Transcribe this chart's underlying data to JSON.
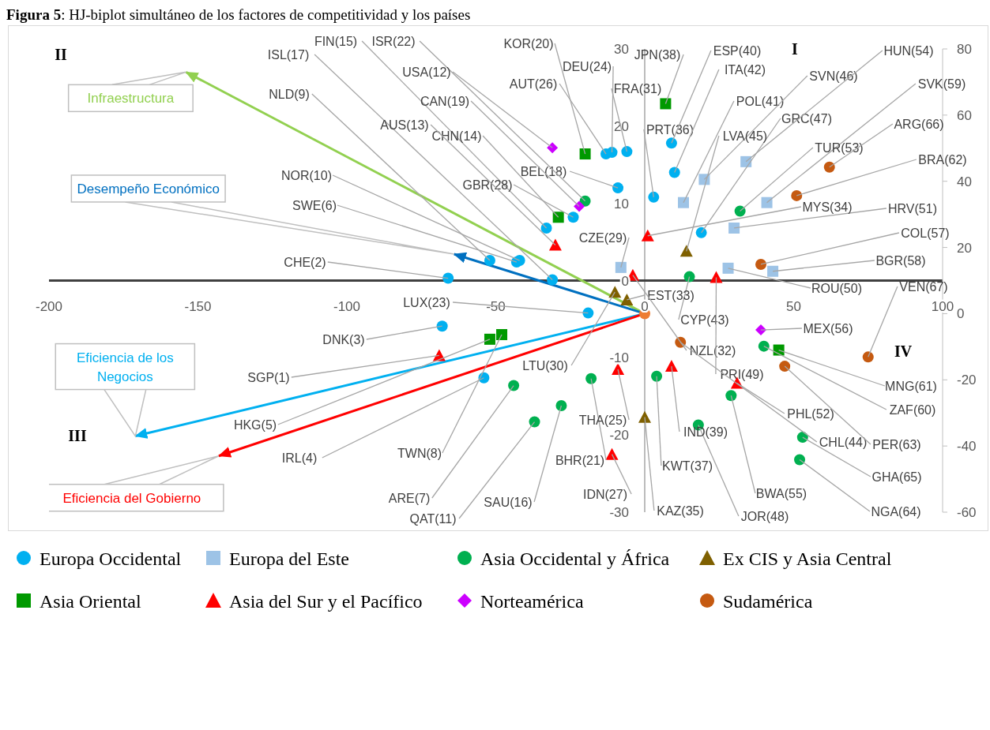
{
  "chart_data": {
    "type": "scatter",
    "title": "Figura 5: HJ-biplot simultáneo de los factores de competitividad y los países",
    "xlim": [
      -200,
      100
    ],
    "xticks": [
      -200,
      -150,
      -100,
      -50,
      0,
      50,
      100
    ],
    "ylim": [
      -30,
      30
    ],
    "yticks": [
      -30,
      -20,
      -10,
      0,
      10,
      20,
      30
    ],
    "y2lim": [
      -60,
      80
    ],
    "y2ticks": [
      -60,
      -40,
      -20,
      0,
      20,
      40,
      60,
      80
    ],
    "legend": "bottom",
    "series": [
      {
        "name": "Infraestructura",
        "type": "line",
        "color": "#92d050",
        "axis": "y2",
        "x": [
          0,
          -154
        ],
        "values": [
          0,
          73
        ]
      },
      {
        "name": "Desempeño Económico",
        "type": "line",
        "color": "#0070c0",
        "axis": "y2",
        "x": [
          0,
          -64
        ],
        "values": [
          0,
          18
        ]
      },
      {
        "name": "Eficiencia de los Negocios",
        "type": "line",
        "color": "#00b0f0",
        "axis": "y2",
        "x": [
          0,
          -171
        ],
        "values": [
          0,
          -37
        ]
      },
      {
        "name": "Eficiencia del Gobierno",
        "type": "line",
        "color": "#ff0000",
        "axis": "y2",
        "x": [
          0,
          -143
        ],
        "values": [
          0,
          -43
        ]
      },
      {
        "name": "Europa Occidental",
        "type": "scatter",
        "marker": "circle",
        "color": "#00b0f0",
        "x": [
          -66,
          -43,
          -42,
          -52,
          -31,
          -33,
          -24,
          -9,
          -13,
          -11,
          -6,
          3,
          9,
          10,
          19,
          -19,
          -68,
          -54
        ],
        "values": [
          0.3,
          2.4,
          2.6,
          2.6,
          0.1,
          6.8,
          8.2,
          12.0,
          16.4,
          16.6,
          16.7,
          10.8,
          17.8,
          14.0,
          6.2,
          -4.2,
          -5.9,
          -12.6
        ]
      },
      {
        "name": "Europa del Este",
        "type": "scatter",
        "marker": "square",
        "color": "#9dc3e6",
        "x": [
          -8,
          13,
          20,
          34,
          41,
          30,
          28,
          43
        ],
        "values": [
          1.7,
          10.1,
          13.1,
          15.4,
          10.1,
          6.8,
          1.6,
          1.2
        ]
      },
      {
        "name": "Asia Occidental y África",
        "type": "scatter",
        "marker": "circle",
        "color": "#00b050",
        "x": [
          -20,
          32,
          15,
          -44,
          -37,
          -28,
          -18,
          4,
          18,
          29,
          40,
          53,
          52
        ],
        "values": [
          10.3,
          9.0,
          0.5,
          -13.6,
          -18.3,
          -16.2,
          -12.7,
          -12.4,
          -18.7,
          -14.9,
          -8.5,
          -20.3,
          -23.2
        ]
      },
      {
        "name": "Ex CIS y Asia Central",
        "type": "scatter",
        "marker": "triangle",
        "color": "#7f6000",
        "x": [
          14,
          -10,
          -6,
          0
        ],
        "values": [
          3.8,
          -1.5,
          -2.5,
          -17.7
        ]
      },
      {
        "name": "Asia Oriental",
        "type": "scatter",
        "marker": "square",
        "color": "#009900",
        "x": [
          7,
          -20,
          -29,
          -52,
          -48,
          45
        ],
        "values": [
          22.9,
          16.4,
          8.2,
          -7.6,
          -7.0,
          -9.0
        ]
      },
      {
        "name": "Asia del Sur y el Pacífico",
        "type": "scatter",
        "marker": "triangle",
        "color": "#ff0000",
        "x": [
          -69,
          -30,
          -4,
          1,
          24,
          -9,
          -11,
          9,
          31
        ],
        "values": [
          -9.7,
          4.6,
          0.7,
          5.8,
          0.4,
          -11.5,
          -22.5,
          -11.1,
          -13.3
        ]
      },
      {
        "name": "Norteamérica",
        "type": "scatter",
        "marker": "diamond",
        "color": "#cc00ff",
        "x": [
          -31,
          -22,
          39
        ],
        "values": [
          17.2,
          9.6,
          -6.4
        ]
      },
      {
        "name": "Sudamérica",
        "type": "scatter",
        "marker": "circle",
        "color": "#c55a11",
        "x": [
          62,
          51,
          39,
          12,
          47,
          75
        ],
        "values": [
          14.7,
          11.0,
          2.1,
          -8.0,
          -11.1,
          -9.9
        ]
      },
      {
        "type": "scatter",
        "marker": "circle",
        "color": "#ed7d31",
        "axis": "y2",
        "x": [
          0
        ],
        "values": [
          0
        ]
      }
    ],
    "annotations": [
      "II",
      "I",
      "III",
      "IV",
      {
        "text": "CHE(2)",
        "x": -66,
        "y": 0.3
      },
      {
        "text": "SWE(6)",
        "x": -43,
        "y": 2.4
      },
      {
        "text": "NOR(10)",
        "x": -42,
        "y": 2.6
      },
      {
        "text": "NLD(9)",
        "x": -52,
        "y": 2.6
      },
      {
        "text": "ISL(17)",
        "x": -31,
        "y": 0.1
      },
      {
        "text": "FIN(15)",
        "x": -33,
        "y": 6.8
      },
      {
        "text": "GBR(28)",
        "x": -24,
        "y": 8.2
      },
      {
        "text": "BEL(18)",
        "x": -9,
        "y": 12.0
      },
      {
        "text": "AUT(26)",
        "x": -13,
        "y": 16.4
      },
      {
        "text": "DEU(24)",
        "x": -11,
        "y": 16.6
      },
      {
        "text": "FRA(31)",
        "x": -6,
        "y": 16.7
      },
      {
        "text": "PRT(36)",
        "x": 3,
        "y": 10.8
      },
      {
        "text": "ESP(40)",
        "x": 9,
        "y": 17.8
      },
      {
        "text": "ITA(42)",
        "x": 10,
        "y": 14.0
      },
      {
        "text": "GRC(47)",
        "x": 19,
        "y": 6.2
      },
      {
        "text": "LUX(23)",
        "x": -19,
        "y": -4.2
      },
      {
        "text": "DNK(3)",
        "x": -68,
        "y": -5.9
      },
      {
        "text": "IRL(4)",
        "x": -54,
        "y": -12.6
      },
      {
        "text": "CZE(29)",
        "x": -8,
        "y": 1.7
      },
      {
        "text": "POL(41)",
        "x": 13,
        "y": 10.1
      },
      {
        "text": "SVN(46)",
        "x": 20,
        "y": 13.1
      },
      {
        "text": "HUN(54)",
        "x": 34,
        "y": 15.4
      },
      {
        "text": "SVK(59)",
        "x": 41,
        "y": 10.1
      },
      {
        "text": "HRV(51)",
        "x": 30,
        "y": 6.8
      },
      {
        "text": "ROU(50)",
        "x": 28,
        "y": 1.6
      },
      {
        "text": "BGR(58)",
        "x": 43,
        "y": 1.2
      },
      {
        "text": "ISR(22)",
        "x": -20,
        "y": 10.3
      },
      {
        "text": "TUR(53)",
        "x": 32,
        "y": 9.0
      },
      {
        "text": "CYP(43)",
        "x": 15,
        "y": 0.5
      },
      {
        "text": "ARE(7)",
        "x": -44,
        "y": -13.6
      },
      {
        "text": "QAT(11)",
        "x": -37,
        "y": -18.3
      },
      {
        "text": "SAU(16)",
        "x": -28,
        "y": -16.2
      },
      {
        "text": "BHR(21)",
        "x": -18,
        "y": -12.7
      },
      {
        "text": "KWT(37)",
        "x": 4,
        "y": -12.4
      },
      {
        "text": "JOR(48)",
        "x": 18,
        "y": -18.7
      },
      {
        "text": "BWA(55)",
        "x": 29,
        "y": -14.9
      },
      {
        "text": "ZAF(60)",
        "x": 40,
        "y": -8.5
      },
      {
        "text": "GHA(65)",
        "x": 53,
        "y": -20.3
      },
      {
        "text": "NGA(64)",
        "x": 52,
        "y": -23.2
      },
      {
        "text": "LVA(45)",
        "x": 14,
        "y": 3.8
      },
      {
        "text": "LTU(30)",
        "x": -10,
        "y": -1.5
      },
      {
        "text": "EST(33)",
        "x": -6,
        "y": -2.5
      },
      {
        "text": "KAZ(35)",
        "x": 0,
        "y": -17.7
      },
      {
        "text": "JPN(38)",
        "x": 7,
        "y": 22.9
      },
      {
        "text": "KOR(20)",
        "x": -20,
        "y": 16.4
      },
      {
        "text": "CHN(14)",
        "x": -29,
        "y": 8.2
      },
      {
        "text": "HKG(5)",
        "x": -52,
        "y": -7.6
      },
      {
        "text": "TWN(8)",
        "x": -48,
        "y": -7.0
      },
      {
        "text": "MNG(61)",
        "x": 45,
        "y": -9.0
      },
      {
        "text": "SGP(1)",
        "x": -69,
        "y": -9.7
      },
      {
        "text": "AUS(13)",
        "x": -30,
        "y": 4.6
      },
      {
        "text": "NZL(32)",
        "x": -4,
        "y": 0.7
      },
      {
        "text": "MYS(34)",
        "x": 1,
        "y": 5.8
      },
      {
        "text": "PRI(49)",
        "x": 24,
        "y": 0.4
      },
      {
        "text": "THA(25)",
        "x": -9,
        "y": -11.5
      },
      {
        "text": "IDN(27)",
        "x": -11,
        "y": -22.5
      },
      {
        "text": "IND(39)",
        "x": 9,
        "y": -11.1
      },
      {
        "text": "PHL(52)",
        "x": 31,
        "y": -13.3
      },
      {
        "text": "USA(12)",
        "x": -31,
        "y": 17.2
      },
      {
        "text": "CAN(19)",
        "x": -22,
        "y": 9.6
      },
      {
        "text": "MEX(56)",
        "x": 39,
        "y": -6.4
      },
      {
        "text": "ARG(66)",
        "x": 62,
        "y": 14.7
      },
      {
        "text": "BRA(62)",
        "x": 51,
        "y": 11.0
      },
      {
        "text": "COL(57)",
        "x": 39,
        "y": 2.1
      },
      {
        "text": "CHL(44)",
        "x": 12,
        "y": -8.0
      },
      {
        "text": "PER(63)",
        "x": 47,
        "y": -11.1
      },
      {
        "text": "VEN(67)",
        "x": 75,
        "y": -9.9
      }
    ]
  }
}
